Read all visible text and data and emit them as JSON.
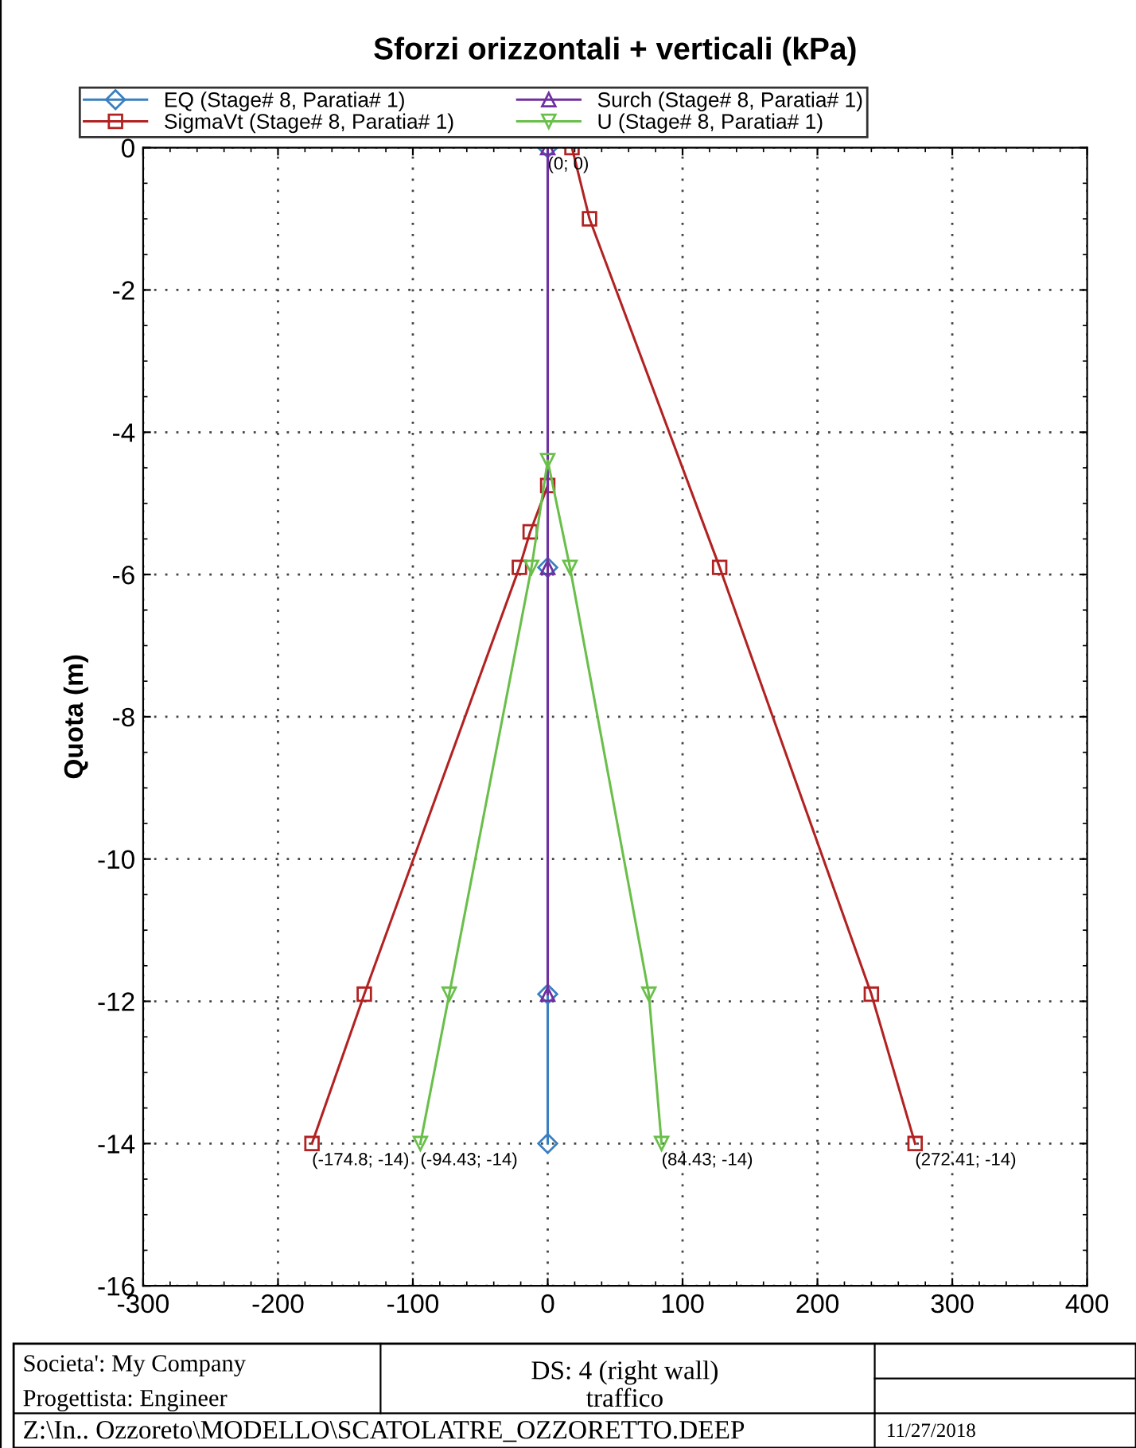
{
  "chart_data": {
    "type": "line",
    "title": "Sforzi orizzontali + verticali (kPa)",
    "ylabel": "Quota (m)",
    "xlim": [
      -300,
      400
    ],
    "xticks": [
      -300,
      -200,
      -100,
      0,
      100,
      200,
      300,
      400
    ],
    "ylim": [
      -16,
      0
    ],
    "yticks": [
      -16,
      -14,
      -12,
      -10,
      -8,
      -6,
      -4,
      -2,
      0
    ],
    "grid": true,
    "legend": "top",
    "line_style": "solid",
    "series": [
      {
        "name": "EQ (Stage# 8, Paratia# 1)",
        "color": "#3a7fc1",
        "marker": "diamond",
        "x": [
          0,
          0,
          0,
          0
        ],
        "values": [
          0,
          -5.9,
          -11.9,
          -14
        ]
      },
      {
        "name": "SigmaVt (Stage# 8, Paratia# 1)",
        "color": "#b22222",
        "marker": "square",
        "x": [
          18,
          31,
          127.5,
          240,
          272.41,
          null,
          -174.8,
          -136,
          -21,
          -13,
          0
        ],
        "values": [
          0,
          -1,
          -5.9,
          -11.9,
          -14,
          null,
          -14,
          -11.9,
          -5.9,
          -5.4,
          -4.75
        ]
      },
      {
        "name": "Surch (Stage# 8, Paratia# 1)",
        "color": "#7030a0",
        "marker": "triangle",
        "x": [
          0,
          0,
          0
        ],
        "values": [
          0,
          -5.9,
          -11.9
        ]
      },
      {
        "name": "U (Stage# 8, Paratia# 1)",
        "color": "#6abf4b",
        "marker": "triangle_down",
        "x": [
          84.43,
          75,
          16.5,
          0,
          -12,
          -73,
          -94.43
        ],
        "values": [
          -14,
          -11.9,
          -5.9,
          -4.4,
          -5.9,
          -11.9,
          -14
        ]
      }
    ],
    "annotations": [
      {
        "text": "(0; 0)",
        "x": 0,
        "y": 0
      },
      {
        "text": "(-174.8; -14)",
        "x": -174.8,
        "y": -14
      },
      {
        "text": "(-94.43; -14)",
        "x": -94.43,
        "y": -14
      },
      {
        "text": "(84.43; -14)",
        "x": 84.43,
        "y": -14
      },
      {
        "text": "(272.41; -14)",
        "x": 272.41,
        "y": -14
      },
      "Societa': My Company",
      "Progettista: Engineer",
      "DS: 4 (right wall)",
      "traffico",
      "Z:\\In.. Ozzoreto\\MODELLO\\SCATOLATRE_OZZORETTO.DEEP",
      "11/27/2018"
    ]
  }
}
